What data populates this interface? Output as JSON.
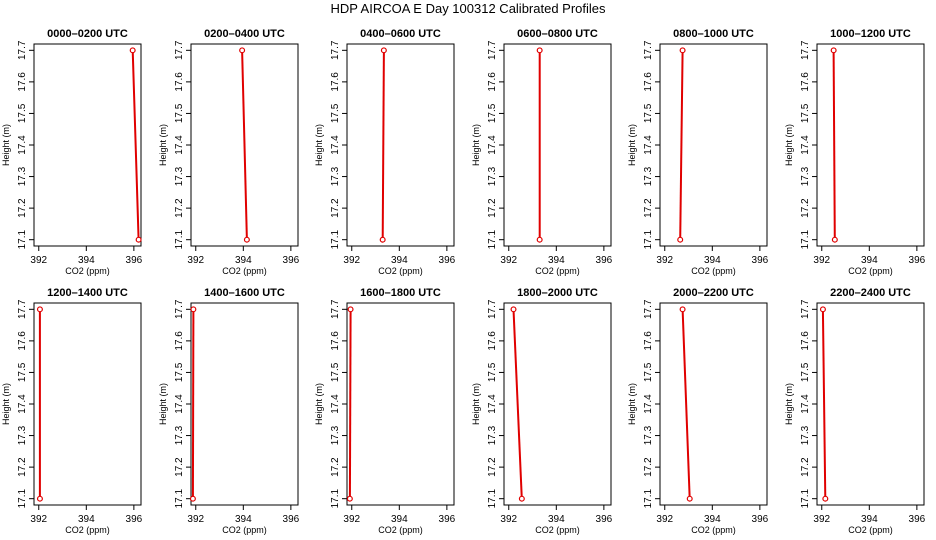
{
  "title": "HDP AIRCOA E  Day 100312  Calibrated Profiles",
  "colors": {
    "line": "#e00000",
    "frame": "#000000",
    "background": "#ffffff"
  },
  "chart_data": [
    {
      "type": "line",
      "title": "0000–0200 UTC",
      "xlabel": "CO2 (ppm)",
      "ylabel": "Height (m)",
      "xlim": [
        391.8,
        396.3
      ],
      "ylim": [
        17.08,
        17.72
      ],
      "xticks": [
        "392",
        "394",
        "396"
      ],
      "yticks": [
        "17.1",
        "17.2",
        "17.3",
        "17.4",
        "17.5",
        "17.6",
        "17.7"
      ],
      "x": [
        395.95,
        396.2
      ],
      "y": [
        17.7,
        17.1
      ]
    },
    {
      "type": "line",
      "title": "0200–0400 UTC",
      "xlabel": "CO2 (ppm)",
      "ylabel": "Height (m)",
      "xlim": [
        391.8,
        396.3
      ],
      "ylim": [
        17.08,
        17.72
      ],
      "xticks": [
        "392",
        "394",
        "396"
      ],
      "yticks": [
        "17.1",
        "17.2",
        "17.3",
        "17.4",
        "17.5",
        "17.6",
        "17.7"
      ],
      "x": [
        393.95,
        394.15
      ],
      "y": [
        17.7,
        17.1
      ]
    },
    {
      "type": "line",
      "title": "0400–0600 UTC",
      "xlabel": "CO2 (ppm)",
      "ylabel": "Height (m)",
      "xlim": [
        391.8,
        396.3
      ],
      "ylim": [
        17.08,
        17.72
      ],
      "xticks": [
        "392",
        "394",
        "396"
      ],
      "yticks": [
        "17.1",
        "17.2",
        "17.3",
        "17.4",
        "17.5",
        "17.6",
        "17.7"
      ],
      "x": [
        393.35,
        393.3
      ],
      "y": [
        17.7,
        17.1
      ]
    },
    {
      "type": "line",
      "title": "0600–0800 UTC",
      "xlabel": "CO2 (ppm)",
      "ylabel": "Height (m)",
      "xlim": [
        391.8,
        396.3
      ],
      "ylim": [
        17.08,
        17.72
      ],
      "xticks": [
        "392",
        "394",
        "396"
      ],
      "yticks": [
        "17.1",
        "17.2",
        "17.3",
        "17.4",
        "17.5",
        "17.6",
        "17.7"
      ],
      "x": [
        393.3,
        393.3
      ],
      "y": [
        17.7,
        17.1
      ]
    },
    {
      "type": "line",
      "title": "0800–1000 UTC",
      "xlabel": "CO2 (ppm)",
      "ylabel": "Height (m)",
      "xlim": [
        391.8,
        396.3
      ],
      "ylim": [
        17.08,
        17.72
      ],
      "xticks": [
        "392",
        "394",
        "396"
      ],
      "yticks": [
        "17.1",
        "17.2",
        "17.3",
        "17.4",
        "17.5",
        "17.6",
        "17.7"
      ],
      "x": [
        392.75,
        392.65
      ],
      "y": [
        17.7,
        17.1
      ]
    },
    {
      "type": "line",
      "title": "1000–1200 UTC",
      "xlabel": "CO2 (ppm)",
      "ylabel": "Height (m)",
      "xlim": [
        391.8,
        396.3
      ],
      "ylim": [
        17.08,
        17.72
      ],
      "xticks": [
        "392",
        "394",
        "396"
      ],
      "yticks": [
        "17.1",
        "17.2",
        "17.3",
        "17.4",
        "17.5",
        "17.6",
        "17.7"
      ],
      "x": [
        392.5,
        392.55
      ],
      "y": [
        17.7,
        17.1
      ]
    },
    {
      "type": "line",
      "title": "1200–1400 UTC",
      "xlabel": "CO2 (ppm)",
      "ylabel": "Height (m)",
      "xlim": [
        391.8,
        396.3
      ],
      "ylim": [
        17.08,
        17.72
      ],
      "xticks": [
        "392",
        "394",
        "396"
      ],
      "yticks": [
        "17.1",
        "17.2",
        "17.3",
        "17.4",
        "17.5",
        "17.6",
        "17.7"
      ],
      "x": [
        392.05,
        392.05
      ],
      "y": [
        17.7,
        17.1
      ]
    },
    {
      "type": "line",
      "title": "1400–1600 UTC",
      "xlabel": "CO2 (ppm)",
      "ylabel": "Height (m)",
      "xlim": [
        391.8,
        396.3
      ],
      "ylim": [
        17.08,
        17.72
      ],
      "xticks": [
        "392",
        "394",
        "396"
      ],
      "yticks": [
        "17.1",
        "17.2",
        "17.3",
        "17.4",
        "17.5",
        "17.6",
        "17.7"
      ],
      "x": [
        391.9,
        391.88
      ],
      "y": [
        17.7,
        17.1
      ]
    },
    {
      "type": "line",
      "title": "1600–1800 UTC",
      "xlabel": "CO2 (ppm)",
      "ylabel": "Height (m)",
      "xlim": [
        391.8,
        396.3
      ],
      "ylim": [
        17.08,
        17.72
      ],
      "xticks": [
        "392",
        "394",
        "396"
      ],
      "yticks": [
        "17.1",
        "17.2",
        "17.3",
        "17.4",
        "17.5",
        "17.6",
        "17.7"
      ],
      "x": [
        391.95,
        391.92
      ],
      "y": [
        17.7,
        17.1
      ]
    },
    {
      "type": "line",
      "title": "1800–2000 UTC",
      "xlabel": "CO2 (ppm)",
      "ylabel": "Height (m)",
      "xlim": [
        391.8,
        396.3
      ],
      "ylim": [
        17.08,
        17.72
      ],
      "xticks": [
        "392",
        "394",
        "396"
      ],
      "yticks": [
        "17.1",
        "17.2",
        "17.3",
        "17.4",
        "17.5",
        "17.6",
        "17.7"
      ],
      "x": [
        392.2,
        392.55
      ],
      "y": [
        17.7,
        17.1
      ]
    },
    {
      "type": "line",
      "title": "2000–2200 UTC",
      "xlabel": "CO2 (ppm)",
      "ylabel": "Height (m)",
      "xlim": [
        391.8,
        396.3
      ],
      "ylim": [
        17.08,
        17.72
      ],
      "xticks": [
        "392",
        "394",
        "396"
      ],
      "yticks": [
        "17.1",
        "17.2",
        "17.3",
        "17.4",
        "17.5",
        "17.6",
        "17.7"
      ],
      "x": [
        392.75,
        393.05
      ],
      "y": [
        17.7,
        17.1
      ]
    },
    {
      "type": "line",
      "title": "2200–2400 UTC",
      "xlabel": "CO2 (ppm)",
      "ylabel": "Height (m)",
      "xlim": [
        391.8,
        396.3
      ],
      "ylim": [
        17.08,
        17.72
      ],
      "xticks": [
        "392",
        "394",
        "396"
      ],
      "yticks": [
        "17.1",
        "17.2",
        "17.3",
        "17.4",
        "17.5",
        "17.6",
        "17.7"
      ],
      "x": [
        392.05,
        392.15
      ],
      "y": [
        17.7,
        17.1
      ]
    }
  ]
}
